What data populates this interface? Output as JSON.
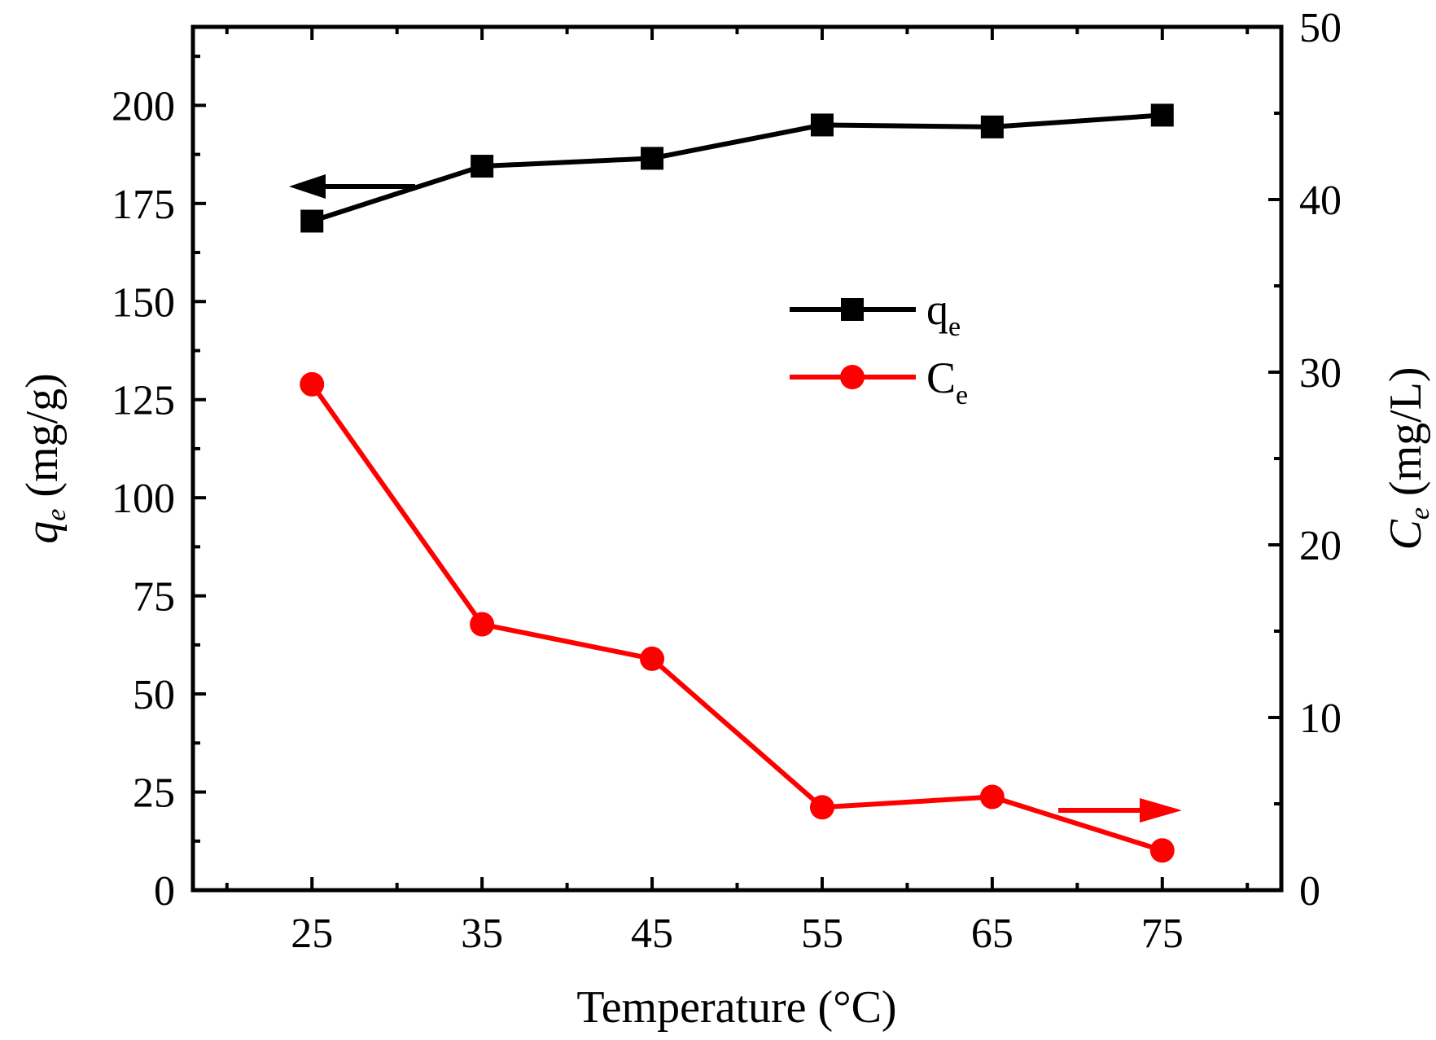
{
  "chart_data": {
    "type": "line",
    "x": [
      25,
      35,
      45,
      55,
      65,
      75
    ],
    "xlabel": "Temperature (°C)",
    "xlim": [
      18,
      82
    ],
    "xticks": [
      "25",
      "35",
      "45",
      "55",
      "65",
      "75"
    ],
    "y_left": {
      "label_var": "q",
      "label_sub": "e",
      "label_unit": " (mg/g)",
      "ylim": [
        0,
        220
      ],
      "ticks": [
        "0",
        "25",
        "50",
        "75",
        "100",
        "125",
        "150",
        "175",
        "200"
      ]
    },
    "y_right": {
      "label_var": "C",
      "label_sub": "e",
      "label_unit": " (mg/L)",
      "ylim": [
        0,
        50
      ],
      "ticks": [
        "0",
        "10",
        "20",
        "30",
        "40",
        "50"
      ]
    },
    "series": [
      {
        "name": "q",
        "name_sub": "e",
        "axis": "left",
        "marker": "square",
        "color": "#000000",
        "values": [
          170.5,
          184.5,
          186.5,
          195.0,
          194.5,
          197.5
        ]
      },
      {
        "name": "C",
        "name_sub": "e",
        "axis": "right",
        "marker": "circle",
        "color": "#ff0000",
        "values": [
          29.3,
          15.4,
          13.4,
          4.8,
          5.4,
          2.3
        ]
      }
    ],
    "legend_position": "center-right",
    "annotations": [
      {
        "type": "arrow",
        "direction": "left",
        "color": "#000000",
        "points_to": "left axis"
      },
      {
        "type": "arrow",
        "direction": "right",
        "color": "#ff0000",
        "points_to": "right axis"
      }
    ]
  }
}
